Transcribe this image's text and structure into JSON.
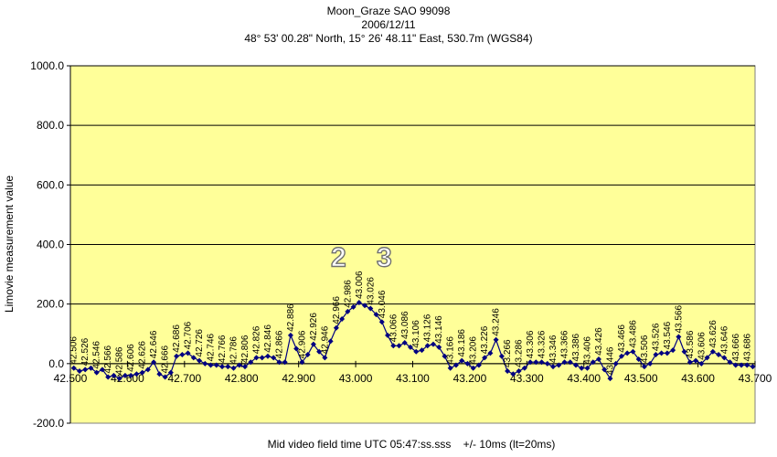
{
  "colors": {
    "plot_background": "#ffff99",
    "line": "#000080",
    "gridline": "#000000"
  },
  "chart_data": {
    "type": "line",
    "title_lines": [
      "Moon_Graze SAO 99098",
      "2006/12/11",
      "48° 53' 00.28\" North, 15° 26' 48.11\" East, 530.7m (WGS84)"
    ],
    "xlabel": "Mid video field time UTC 05:47:ss.sss    +/- 10ms (lt=20ms)",
    "ylabel": "Limovie measurement value",
    "xlim": [
      42.5,
      43.7
    ],
    "ylim": [
      -200,
      1000
    ],
    "x_ticks": [
      "42.500",
      "42.600",
      "42.700",
      "42.800",
      "42.900",
      "43.000",
      "43.100",
      "43.200",
      "43.300",
      "43.400",
      "43.500",
      "43.600",
      "43.700"
    ],
    "y_ticks": [
      "-200.0",
      "0.0",
      "200.0",
      "400.0",
      "600.0",
      "800.0",
      "1000.0"
    ],
    "grid": "horizontal major",
    "annotations": [
      {
        "text": "2",
        "x": 42.97,
        "y": 370
      },
      {
        "text": "3",
        "x": 43.05,
        "y": 370
      }
    ],
    "series": [
      {
        "label_every": 2,
        "x": [
          42.506,
          42.516,
          42.526,
          42.536,
          42.546,
          42.556,
          42.566,
          42.576,
          42.586,
          42.596,
          42.606,
          42.616,
          42.626,
          42.636,
          42.646,
          42.656,
          42.666,
          42.676,
          42.686,
          42.696,
          42.706,
          42.716,
          42.726,
          42.736,
          42.746,
          42.756,
          42.766,
          42.776,
          42.786,
          42.796,
          42.806,
          42.816,
          42.826,
          42.836,
          42.846,
          42.856,
          42.866,
          42.876,
          42.886,
          42.896,
          42.906,
          42.916,
          42.926,
          42.936,
          42.946,
          42.956,
          42.966,
          42.976,
          42.986,
          42.996,
          43.006,
          43.016,
          43.026,
          43.036,
          43.046,
          43.056,
          43.066,
          43.076,
          43.086,
          43.096,
          43.106,
          43.116,
          43.126,
          43.136,
          43.146,
          43.156,
          43.166,
          43.176,
          43.186,
          43.196,
          43.206,
          43.216,
          43.226,
          43.236,
          43.246,
          43.256,
          43.266,
          43.276,
          43.286,
          43.296,
          43.306,
          43.316,
          43.326,
          43.336,
          43.346,
          43.356,
          43.366,
          43.376,
          43.386,
          43.396,
          43.406,
          43.416,
          43.426,
          43.436,
          43.446,
          43.456,
          43.466,
          43.476,
          43.486,
          43.496,
          43.506,
          43.516,
          43.526,
          43.536,
          43.546,
          43.556,
          43.566,
          43.576,
          43.586,
          43.596,
          43.606,
          43.616,
          43.626,
          43.636,
          43.646,
          43.656,
          43.666,
          43.676,
          43.686,
          43.696
        ],
        "y": [
          -15,
          -25,
          -20,
          -15,
          -30,
          -20,
          -45,
          -40,
          -50,
          -40,
          -40,
          -35,
          -30,
          -20,
          5,
          -35,
          -45,
          -30,
          25,
          30,
          35,
          20,
          10,
          0,
          -5,
          -5,
          -10,
          -10,
          -15,
          -5,
          -10,
          5,
          20,
          20,
          25,
          20,
          5,
          5,
          95,
          50,
          5,
          30,
          65,
          40,
          20,
          75,
          120,
          150,
          175,
          190,
          205,
          195,
          185,
          165,
          140,
          95,
          60,
          60,
          70,
          55,
          40,
          45,
          60,
          65,
          55,
          25,
          -15,
          -5,
          10,
          0,
          -15,
          -5,
          20,
          35,
          80,
          25,
          -25,
          -35,
          -25,
          -15,
          5,
          5,
          5,
          0,
          -10,
          -5,
          5,
          5,
          -5,
          -15,
          -15,
          5,
          15,
          -20,
          -50,
          0,
          25,
          35,
          40,
          15,
          -10,
          0,
          30,
          35,
          35,
          45,
          90,
          40,
          5,
          10,
          0,
          20,
          40,
          30,
          20,
          5,
          -5,
          -5,
          -5,
          -10
        ]
      }
    ]
  }
}
